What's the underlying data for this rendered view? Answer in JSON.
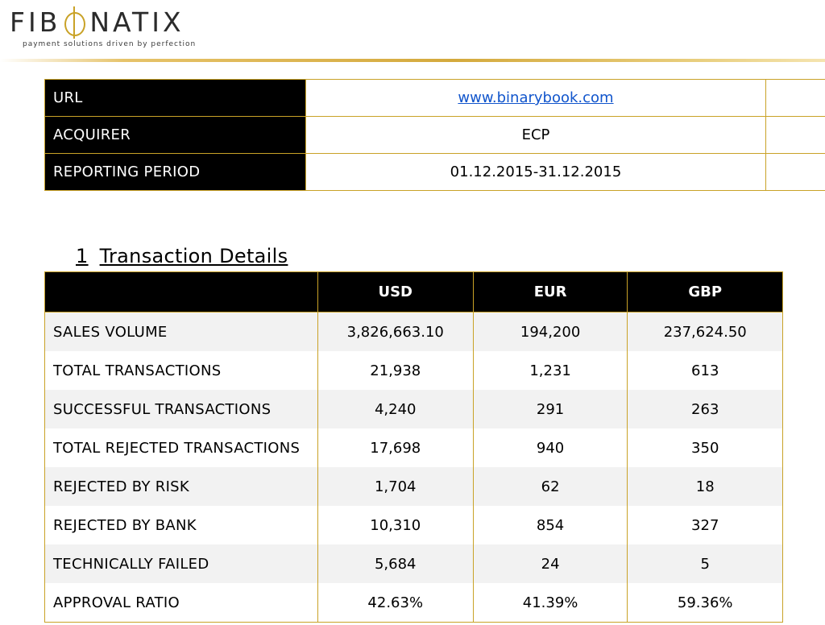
{
  "brand": {
    "name_pre": "FIB",
    "name_post": "NATIX",
    "tagline": "payment solutions driven by perfection"
  },
  "info": {
    "rows": [
      {
        "label": "URL",
        "value": "www.binarybook.com"
      },
      {
        "label": "ACQUIRER",
        "value": "ECP"
      },
      {
        "label": "REPORTING PERIOD",
        "value": "01.12.2015-31.12.2015"
      }
    ]
  },
  "section": {
    "number": "1",
    "title": "Transaction Details"
  },
  "transactions": {
    "headers": [
      "",
      "USD",
      "EUR",
      "GBP"
    ],
    "rows": [
      {
        "label": "SALES VOLUME",
        "usd": "3,826,663.10",
        "eur": "194,200",
        "gbp": "237,624.50"
      },
      {
        "label": "TOTAL TRANSACTIONS",
        "usd": "21,938",
        "eur": "1,231",
        "gbp": "613"
      },
      {
        "label": "SUCCESSFUL TRANSACTIONS",
        "usd": "4,240",
        "eur": "291",
        "gbp": "263"
      },
      {
        "label": "TOTAL REJECTED TRANSACTIONS",
        "usd": "17,698",
        "eur": "940",
        "gbp": "350"
      },
      {
        "label": "REJECTED BY RISK",
        "usd": "1,704",
        "eur": "62",
        "gbp": "18"
      },
      {
        "label": "REJECTED BY BANK",
        "usd": "10,310",
        "eur": "854",
        "gbp": "327"
      },
      {
        "label": "TECHNICALLY FAILED",
        "usd": "5,684",
        "eur": "24",
        "gbp": "5"
      },
      {
        "label": "APPROVAL RATIO",
        "usd": "42.63%",
        "eur": "41.39%",
        "gbp": "59.36%"
      }
    ]
  },
  "colors": {
    "accent": "#c9a227",
    "header_bg": "#000000",
    "link": "#1155cc"
  }
}
